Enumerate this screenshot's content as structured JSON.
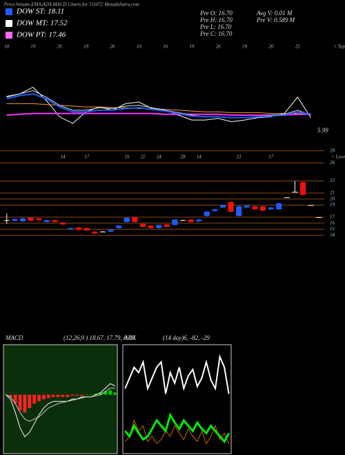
{
  "header": {
    "title": "Price,Volume,EMA,ADX,MACD Charts for 511072 MunafaSutra.com",
    "legend": [
      {
        "label": "DOW ST: 18.11",
        "color": "#1e5cff"
      },
      {
        "label": "DOW MT: 17.52",
        "color": "#ffffff"
      },
      {
        "label": "DOW PT: 17.46",
        "color": "#ff66ff"
      }
    ],
    "stats": [
      "Pre O: 16.70",
      "Avg V: 0.01 M",
      "Pre H: 16.70",
      "Pre V: 0.589 M",
      "Pre L: 16.70",
      "Pre C: 16.70"
    ],
    "tops_label": "< Tops",
    "lows_label": "< Lows",
    "last_price": "5.99"
  },
  "chart_data": [
    {
      "type": "line",
      "categories": [
        "10",
        null,
        "19",
        null,
        "26",
        null,
        "19",
        null,
        "26",
        null,
        "10",
        null,
        "16",
        null,
        "19",
        null,
        "26",
        null,
        "19",
        null,
        "26",
        null,
        "25",
        null
      ],
      "ylim": [
        6,
        14
      ],
      "series": [
        {
          "color": "#ffffff",
          "width": 1,
          "values": [
            11.5,
            11.8,
            12.6,
            11.0,
            9.0,
            8.2,
            9.6,
            10.2,
            9.8,
            10.6,
            10.8,
            10.0,
            9.8,
            9.2,
            8.6,
            8.6,
            8.8,
            8.4,
            8.6,
            8.9,
            9.0,
            9.4,
            11.4,
            8.9
          ]
        },
        {
          "color": "#ff9933",
          "width": 1,
          "values": [
            10.6,
            10.6,
            10.6,
            10.5,
            10.4,
            10.3,
            10.2,
            10.2,
            10.1,
            10.1,
            10.0,
            10.0,
            9.9,
            9.8,
            9.7,
            9.6,
            9.6,
            9.5,
            9.5,
            9.5,
            9.4,
            9.4,
            9.4,
            9.4
          ]
        },
        {
          "color": "#ff33ff",
          "width": 2,
          "values": [
            9.2,
            9.3,
            9.4,
            9.4,
            9.4,
            9.4,
            9.4,
            9.4,
            9.4,
            9.4,
            9.4,
            9.4,
            9.3,
            9.3,
            9.3,
            9.3,
            9.3,
            9.2,
            9.2,
            9.2,
            9.2,
            9.2,
            9.3,
            9.3
          ]
        },
        {
          "color": "#dddddd",
          "width": 1,
          "values": [
            11.4,
            11.8,
            12.2,
            11.4,
            10.4,
            9.8,
            9.8,
            10.1,
            10.0,
            10.3,
            10.4,
            10.1,
            9.8,
            9.5,
            9.2,
            9.0,
            9.0,
            8.9,
            8.9,
            9.0,
            9.2,
            9.3,
            9.8,
            9.2
          ]
        },
        {
          "color": "#1e5cff",
          "width": 2,
          "values": [
            11.2,
            11.6,
            11.8,
            11.2,
            10.2,
            9.6,
            9.6,
            9.8,
            9.8,
            10.0,
            10.1,
            9.9,
            9.7,
            9.4,
            9.1,
            9.0,
            9.0,
            8.9,
            8.9,
            9.0,
            9.1,
            9.2,
            9.6,
            9.3
          ]
        }
      ]
    },
    {
      "type": "candlestick",
      "categories": [
        null,
        null,
        null,
        null,
        null,
        null,
        null,
        "14",
        null,
        null,
        "17",
        null,
        null,
        null,
        null,
        "19",
        null,
        "21",
        null,
        "24",
        null,
        null,
        "28",
        null,
        "14",
        null,
        null,
        null,
        null,
        "21",
        null,
        null,
        null,
        "17",
        null,
        null,
        null,
        null,
        null,
        null
      ],
      "open": [
        16.5,
        16.4,
        16.3,
        16.9,
        16.8,
        16.2,
        16.5,
        16.1,
        15.0,
        15.3,
        15.2,
        14.6,
        14.6,
        14.6,
        15.2,
        16.2,
        17.0,
        15.9,
        15.6,
        15.2,
        15.8,
        15.7,
        16.5,
        16.6,
        16.3,
        17.2,
        18.0,
        18.6,
        19.5,
        17.2,
        18.6,
        18.8,
        18.8,
        18.3,
        18.3,
        20.3,
        21.2,
        22.8,
        19.0,
        17.0
      ],
      "high": [
        17.6,
        16.8,
        16.9,
        17.0,
        16.9,
        16.6,
        16.6,
        16.2,
        15.3,
        15.4,
        15.3,
        14.7,
        14.7,
        15.0,
        15.7,
        17.0,
        17.1,
        16.0,
        15.7,
        15.8,
        15.9,
        16.7,
        16.6,
        16.7,
        16.7,
        18.0,
        18.4,
        19.1,
        19.6,
        18.9,
        19.0,
        18.9,
        18.9,
        18.7,
        19.4,
        20.3,
        23.0,
        22.9,
        19.0,
        17.0
      ],
      "low": [
        15.9,
        16.3,
        16.2,
        16.3,
        16.4,
        16.1,
        16.1,
        15.7,
        14.9,
        14.8,
        14.7,
        14.2,
        14.5,
        14.5,
        15.1,
        16.1,
        16.1,
        15.3,
        15.1,
        15.1,
        15.3,
        15.6,
        16.4,
        16.1,
        16.2,
        17.1,
        17.9,
        18.5,
        17.8,
        17.1,
        18.5,
        18.2,
        18.0,
        18.2,
        18.2,
        20.3,
        21.2,
        20.6,
        19.0,
        17.0
      ],
      "close": [
        16.5,
        16.7,
        16.8,
        16.4,
        16.5,
        16.5,
        16.2,
        15.8,
        15.2,
        14.9,
        14.8,
        14.3,
        14.6,
        14.9,
        15.6,
        16.9,
        16.2,
        15.4,
        15.2,
        15.7,
        15.4,
        16.6,
        16.5,
        16.2,
        16.6,
        17.9,
        18.3,
        19.0,
        17.9,
        18.8,
        18.9,
        18.3,
        18.1,
        18.6,
        19.3,
        20.3,
        21.2,
        20.7,
        19.0,
        17.0
      ],
      "up_color": "#1e5cff",
      "down_color": "#ee1111",
      "grid_color": "#8b4513",
      "ylim": [
        13,
        29
      ],
      "yticks": [
        28,
        26,
        23,
        21,
        20,
        19,
        17,
        16,
        15,
        14
      ],
      "grid": true
    },
    {
      "type": "macd",
      "label": "MACD",
      "params": "(12,26,9 ) 18.67, 17.79, 0.88",
      "ylim": [
        -2.6,
        2.2
      ],
      "values": [
        0,
        -0.1,
        -0.4,
        -0.7,
        -0.8,
        -0.6,
        -0.4,
        -0.3,
        -0.2,
        -0.15,
        -0.1,
        -0.1,
        -0.1,
        -0.1,
        -0.05,
        -0.05,
        -0.05,
        0,
        0,
        0.05,
        0.1,
        0.15,
        0.2,
        0.1
      ],
      "up_color": "#00cc00",
      "down_color": "#ff2222",
      "series": [
        {
          "color": "#ffffff",
          "values": [
            0,
            -0.2,
            -0.8,
            -1.5,
            -1.9,
            -1.7,
            -1.3,
            -0.9,
            -0.6,
            -0.4,
            -0.3,
            -0.3,
            -0.3,
            -0.3,
            -0.2,
            -0.2,
            -0.1,
            -0.1,
            -0.1,
            0,
            0.1,
            0.3,
            0.5,
            0.4
          ]
        },
        {
          "color": "#cccccc",
          "values": [
            0,
            -0.1,
            -0.4,
            -0.8,
            -1.1,
            -1.2,
            -1.1,
            -1.0,
            -0.8,
            -0.6,
            -0.5,
            -0.4,
            -0.35,
            -0.3,
            -0.25,
            -0.2,
            -0.15,
            -0.1,
            -0.1,
            -0.05,
            0,
            0.15,
            0.3,
            0.3
          ]
        }
      ]
    },
    {
      "type": "line",
      "label": "ADX",
      "params": "(14 day)6, -82, -29",
      "ylim": [
        0,
        100
      ],
      "series": [
        {
          "color": "#ffffff",
          "width": 2,
          "values": [
            60,
            70,
            80,
            75,
            85,
            60,
            70,
            80,
            85,
            55,
            75,
            65,
            80,
            60,
            72,
            78,
            62,
            70,
            85,
            68,
            60,
            90,
            80,
            55
          ]
        },
        {
          "color": "#cc6600",
          "width": 1,
          "values": [
            10,
            15,
            30,
            20,
            25,
            10,
            15,
            8,
            12,
            20,
            15,
            25,
            18,
            12,
            22,
            15,
            10,
            20,
            8,
            15,
            25,
            12,
            18,
            8
          ]
        },
        {
          "color": "#00ee00",
          "width": 3,
          "values": [
            20,
            15,
            25,
            18,
            12,
            15,
            22,
            30,
            25,
            20,
            35,
            28,
            22,
            30,
            25,
            20,
            28,
            22,
            18,
            25,
            20,
            15,
            10,
            18
          ]
        }
      ]
    }
  ]
}
